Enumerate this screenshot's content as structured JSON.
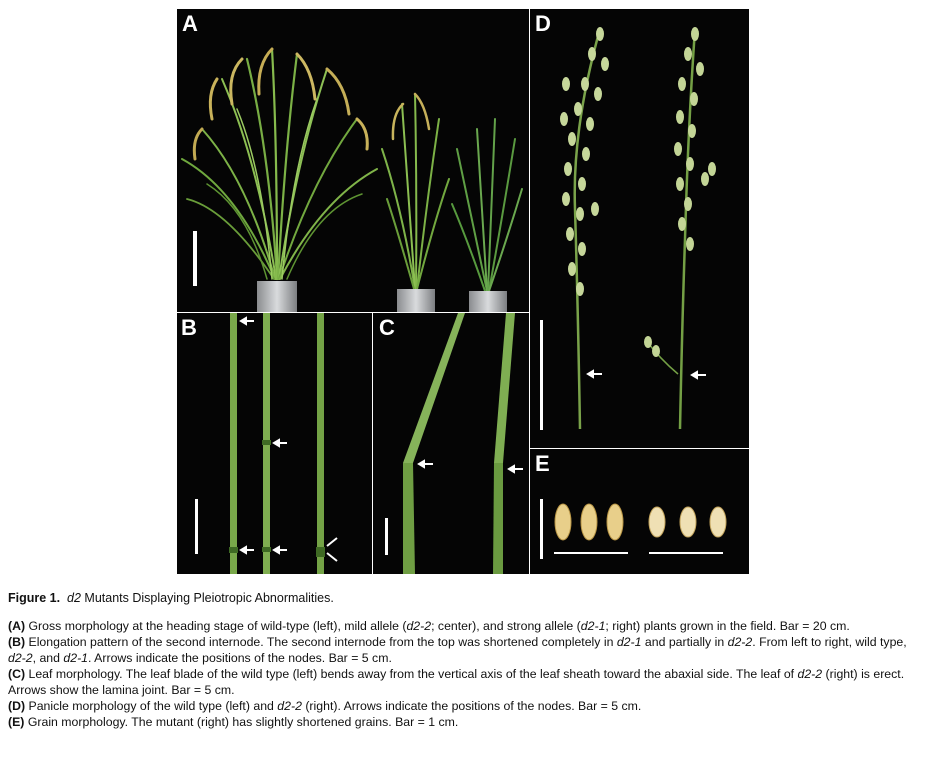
{
  "figure": {
    "panel_labels": {
      "a": "A",
      "b": "B",
      "c": "C",
      "d": "D",
      "e": "E"
    },
    "title_label": "Figure 1.",
    "title_gene": "d2",
    "title_rest": " Mutants Displaying Pleiotropic Abnormalities.",
    "caption_a": {
      "tag": "(A)",
      "t1": " Gross morphology at the heading stage of wild-type (left), mild allele (",
      "g1": "d2-2",
      "t2": "; center), and strong allele (",
      "g2": "d2-1",
      "t3": "; right) plants grown in the field. Bar = 20 cm."
    },
    "caption_b": {
      "tag": "(B)",
      "t1": " Elongation pattern of the second internode. The second internode from the top was shortened completely in ",
      "g1": "d2-1",
      "t2": " and partially in ",
      "g2": "d2-2",
      "t3": ". From left to right, wild type, ",
      "g3": "d2-2",
      "t4": ", and ",
      "g4": "d2-1",
      "t5": ". Arrows indicate the positions of the nodes. Bar = 5 cm."
    },
    "caption_c": {
      "tag": "(C)",
      "t1": " Leaf morphology. The leaf blade of the wild type (left) bends away from the vertical axis of the leaf sheath toward the abaxial side. The leaf of ",
      "g1": "d2-2",
      "t2": " (right) is erect. Arrows show the lamina joint. Bar = 5 cm."
    },
    "caption_d": {
      "tag": "(D)",
      "t1": " Panicle morphology of the wild type (left) and ",
      "g1": "d2-2",
      "t2": " (right). Arrows indicate the positions of the nodes. Bar = 5 cm."
    },
    "caption_e": {
      "tag": "(E)",
      "t1": " Grain morphology. The mutant (right) has slightly shortened grains. Bar = 1 cm."
    }
  }
}
